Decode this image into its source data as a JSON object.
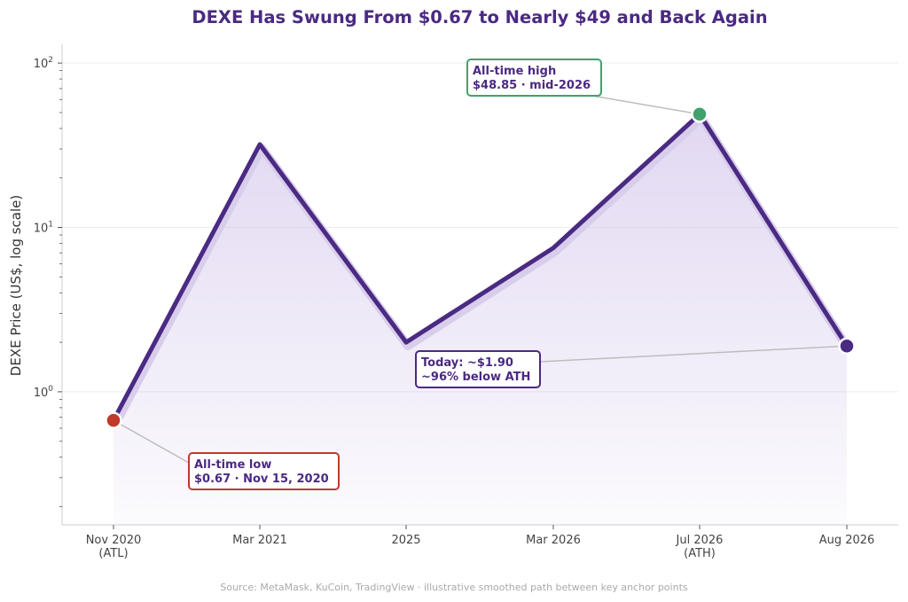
{
  "chart_data": {
    "type": "line",
    "title": "DEXE Has Swung From $0.67 to Nearly $49 and Back Again",
    "ylabel": "DEXE Price (US$, log scale)",
    "xlabel": "",
    "yscale": "log",
    "ylim": [
      0.155,
      130
    ],
    "yticks": [
      1,
      10,
      100
    ],
    "ytick_labels": [
      [
        "10",
        "0"
      ],
      [
        "10",
        "1"
      ],
      [
        "10",
        "2"
      ]
    ],
    "categories": [
      [
        "Nov 2020",
        "(ATL)"
      ],
      [
        "Mar 2021"
      ],
      [
        "2025"
      ],
      [
        "Mar 2026"
      ],
      [
        "Jul 2026",
        "(ATH)"
      ],
      [
        "Aug 2026"
      ]
    ],
    "values": [
      0.67,
      32,
      2.0,
      7.5,
      48.85,
      1.9
    ],
    "grid": true,
    "line_color": "#4a2a82",
    "fill_color": "#c9b8e6",
    "points": [
      {
        "index": 0,
        "color": "#c0392b"
      },
      {
        "index": 4,
        "color": "#3fa26b"
      },
      {
        "index": 5,
        "color": "#4a2a82"
      }
    ],
    "annotations": [
      {
        "index": 4,
        "lines": [
          "All-time high",
          "$48.85 · mid-2026"
        ],
        "border": "#3fa26b"
      },
      {
        "index": 5,
        "lines": [
          "Today: ~$1.90",
          "~96% below ATH"
        ],
        "border": "#4a2a82"
      },
      {
        "index": 0,
        "lines": [
          "All-time low",
          "$0.67 · Nov 15, 2020"
        ],
        "border": "#c0392b"
      }
    ],
    "source": "Source: MetaMask, KuCoin, TradingView · illustrative smoothed path between key anchor points"
  }
}
